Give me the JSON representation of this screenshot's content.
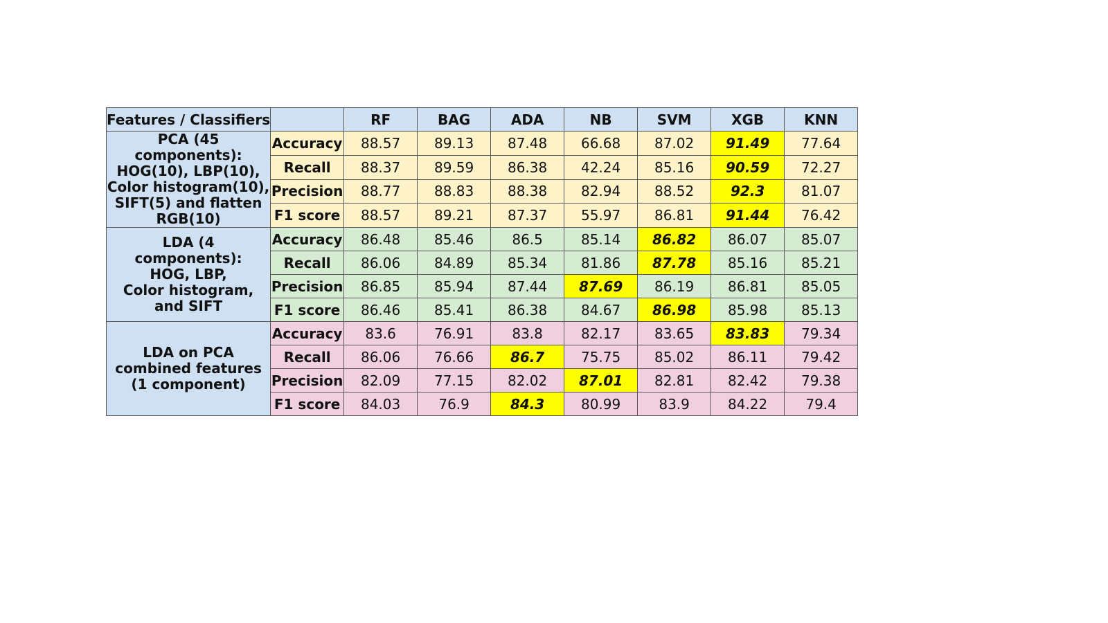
{
  "table": {
    "corner_label": "Features / Classifiers",
    "classifiers": [
      "RF",
      "BAG",
      "ADA",
      "NB",
      "SVM",
      "XGB",
      "KNN"
    ],
    "colors": {
      "header_bg": "#cfe0f3",
      "highlight": "#ffff00",
      "group_backgrounds": [
        "#fdf2c8",
        "#d6ecd2",
        "#f0d0de"
      ]
    },
    "groups": [
      {
        "label_lines": [
          "PCA (45 components):",
          "HOG(10), LBP(10),",
          "Color histogram(10),",
          "SIFT(5) and flatten",
          "RGB(10)"
        ],
        "rows": [
          {
            "metric": "Accuracy",
            "values": [
              "88.57",
              "89.13",
              "87.48",
              "66.68",
              "87.02",
              "91.49",
              "77.64"
            ],
            "best_index": 5
          },
          {
            "metric": "Recall",
            "values": [
              "88.37",
              "89.59",
              "86.38",
              "42.24",
              "85.16",
              "90.59",
              "72.27"
            ],
            "best_index": 5
          },
          {
            "metric": "Precision",
            "values": [
              "88.77",
              "88.83",
              "88.38",
              "82.94",
              "88.52",
              "92.3",
              "81.07"
            ],
            "best_index": 5
          },
          {
            "metric": "F1 score",
            "values": [
              "88.57",
              "89.21",
              "87.37",
              "55.97",
              "86.81",
              "91.44",
              "76.42"
            ],
            "best_index": 5
          }
        ]
      },
      {
        "label_lines": [
          "LDA (4 components):",
          "HOG, LBP,",
          "Color histogram,",
          "and SIFT"
        ],
        "rows": [
          {
            "metric": "Accuracy",
            "values": [
              "86.48",
              "85.46",
              "86.5",
              "85.14",
              "86.82",
              "86.07",
              "85.07"
            ],
            "best_index": 4
          },
          {
            "metric": "Recall",
            "values": [
              "86.06",
              "84.89",
              "85.34",
              "81.86",
              "87.78",
              "85.16",
              "85.21"
            ],
            "best_index": 4
          },
          {
            "metric": "Precision",
            "values": [
              "86.85",
              "85.94",
              "87.44",
              "87.69",
              "86.19",
              "86.81",
              "85.05"
            ],
            "best_index": 3
          },
          {
            "metric": "F1 score",
            "values": [
              "86.46",
              "85.41",
              "86.38",
              "84.67",
              "86.98",
              "85.98",
              "85.13"
            ],
            "best_index": 4
          }
        ]
      },
      {
        "label_lines": [
          "LDA on PCA",
          "combined features",
          "(1 component)"
        ],
        "rows": [
          {
            "metric": "Accuracy",
            "values": [
              "83.6",
              "76.91",
              "83.8",
              "82.17",
              "83.65",
              "83.83",
              "79.34"
            ],
            "best_index": 5
          },
          {
            "metric": "Recall",
            "values": [
              "86.06",
              "76.66",
              "86.7",
              "75.75",
              "85.02",
              "86.11",
              "79.42"
            ],
            "best_index": 2
          },
          {
            "metric": "Precision",
            "values": [
              "82.09",
              "77.15",
              "82.02",
              "87.01",
              "82.81",
              "82.42",
              "79.38"
            ],
            "best_index": 3
          },
          {
            "metric": "F1 score",
            "values": [
              "84.03",
              "76.9",
              "84.3",
              "80.99",
              "83.9",
              "84.22",
              "79.4"
            ],
            "best_index": 2
          }
        ]
      }
    ]
  }
}
